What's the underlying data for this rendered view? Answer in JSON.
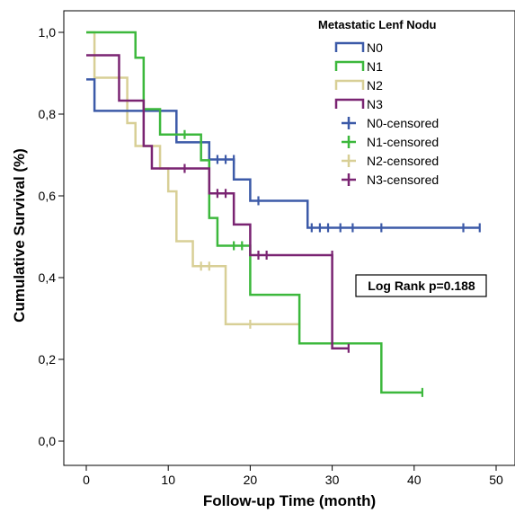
{
  "chart_data": {
    "type": "line",
    "subtype": "kaplan-meier",
    "xlabel": "Follow-up Time (month)",
    "ylabel": "Cumulative Survival (%)",
    "xlim": [
      0,
      50
    ],
    "ylim": [
      0,
      1
    ],
    "x_ticks": [
      0,
      10,
      20,
      30,
      40,
      50
    ],
    "y_ticks": [
      {
        "value": 0.0,
        "label": "0,0"
      },
      {
        "value": 0.2,
        "label": "0,2"
      },
      {
        "value": 0.4,
        "label": "0,4"
      },
      {
        "value": 0.6,
        "label": "0,6"
      },
      {
        "value": 0.8,
        "label": "0,8"
      },
      {
        "value": 1.0,
        "label": "1,0"
      }
    ],
    "grid": false,
    "legend": {
      "title": "Metastatic Lenf Nodu",
      "placement": "top-right",
      "entries": [
        {
          "label": "N0",
          "color": "#3c5aa8",
          "kind": "line"
        },
        {
          "label": "N1",
          "color": "#3cb83c",
          "kind": "line"
        },
        {
          "label": "N2",
          "color": "#d8cf96",
          "kind": "line"
        },
        {
          "label": "N3",
          "color": "#7a2472",
          "kind": "line"
        },
        {
          "label": "N0-censored",
          "color": "#3c5aa8",
          "kind": "censor"
        },
        {
          "label": "N1-censored",
          "color": "#3cb83c",
          "kind": "censor"
        },
        {
          "label": "N2-censored",
          "color": "#d8cf96",
          "kind": "censor"
        },
        {
          "label": "N3-censored",
          "color": "#7a2472",
          "kind": "censor"
        }
      ]
    },
    "annotation": "Log Rank p=0.188",
    "series": [
      {
        "name": "N0",
        "color": "#3c5aa8",
        "steps": [
          [
            0,
            0.885
          ],
          [
            1,
            0.808
          ],
          [
            11,
            0.731
          ],
          [
            15,
            0.689
          ],
          [
            18,
            0.64
          ],
          [
            20,
            0.588
          ],
          [
            27,
            0.522
          ],
          [
            48,
            0.522
          ]
        ],
        "censored": [
          [
            16,
            0.689
          ],
          [
            17,
            0.689
          ],
          [
            18,
            0.689
          ],
          [
            21,
            0.588
          ],
          [
            27.5,
            0.522
          ],
          [
            28.5,
            0.522
          ],
          [
            29.5,
            0.522
          ],
          [
            31,
            0.522
          ],
          [
            32.5,
            0.522
          ],
          [
            36,
            0.522
          ],
          [
            46,
            0.522
          ],
          [
            48,
            0.522
          ]
        ]
      },
      {
        "name": "N1",
        "color": "#3cb83c",
        "steps": [
          [
            0,
            1.0
          ],
          [
            6,
            0.938
          ],
          [
            7,
            0.812
          ],
          [
            9,
            0.75
          ],
          [
            14,
            0.687
          ],
          [
            15,
            0.546
          ],
          [
            16,
            0.478
          ],
          [
            20,
            0.358
          ],
          [
            26,
            0.239
          ],
          [
            36,
            0.119
          ],
          [
            41,
            0.119
          ]
        ],
        "censored": [
          [
            12,
            0.75
          ],
          [
            18,
            0.478
          ],
          [
            19,
            0.478
          ],
          [
            41,
            0.119
          ]
        ]
      },
      {
        "name": "N2",
        "color": "#d8cf96",
        "steps": [
          [
            0,
            1.0
          ],
          [
            1,
            0.889
          ],
          [
            5,
            0.778
          ],
          [
            6,
            0.722
          ],
          [
            9,
            0.667
          ],
          [
            10,
            0.611
          ],
          [
            11,
            0.489
          ],
          [
            13,
            0.428
          ],
          [
            17,
            0.286
          ],
          [
            26,
            0.286
          ]
        ],
        "censored": [
          [
            14,
            0.428
          ],
          [
            15,
            0.428
          ],
          [
            20,
            0.286
          ],
          [
            26,
            0.286
          ]
        ]
      },
      {
        "name": "N3",
        "color": "#7a2472",
        "steps": [
          [
            0,
            0.944
          ],
          [
            4,
            0.833
          ],
          [
            7,
            0.722
          ],
          [
            8,
            0.667
          ],
          [
            15,
            0.606
          ],
          [
            18,
            0.53
          ],
          [
            20,
            0.455
          ],
          [
            30,
            0.227
          ],
          [
            32,
            0.227
          ]
        ],
        "censored": [
          [
            12,
            0.667
          ],
          [
            16,
            0.606
          ],
          [
            17,
            0.606
          ],
          [
            21,
            0.455
          ],
          [
            22,
            0.455
          ],
          [
            30,
            0.455
          ],
          [
            32,
            0.227
          ]
        ]
      }
    ]
  }
}
